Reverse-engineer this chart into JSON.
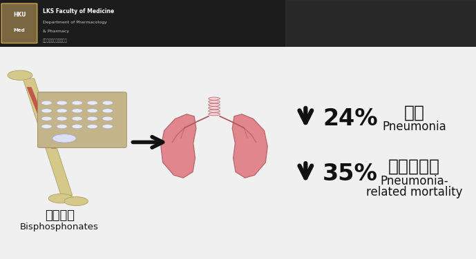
{
  "bg_color": "#f0f0f0",
  "header_bg": "#1c1c1c",
  "header_text1": "LKS Faculty of Medicine",
  "header_text2": "Department of Pharmacology",
  "header_text3": "& Pharmacy",
  "header_text4": "香港大學藥理及藥劑學系",
  "chinese_label1": "雙磷酸鹽",
  "english_label1": "Bisphosphonates",
  "pct1": "24%",
  "pct2": "35%",
  "chinese_label2": "肺炎",
  "english_label2": "Pneumonia",
  "chinese_label3": "肺炎死亡率",
  "english_label3_line1": "Pneumonia-",
  "english_label3_line2": "related mortality",
  "text_color": "#111111",
  "arrow_color": "#111111",
  "figsize": [
    6.89,
    3.76
  ],
  "dpi": 100
}
